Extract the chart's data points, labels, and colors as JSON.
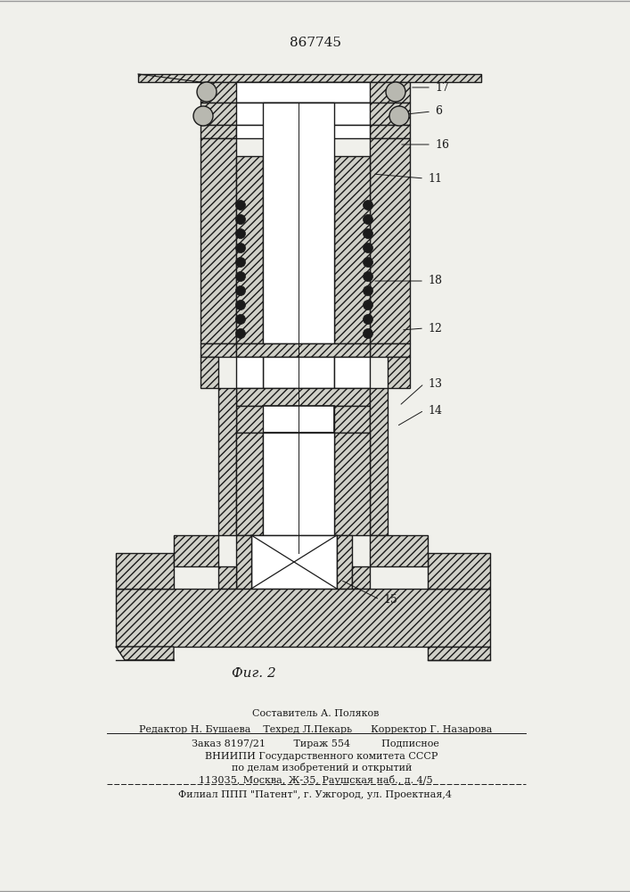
{
  "patent_number": "867745",
  "figure_label": "Фиг. 2",
  "bg_color": "#f0f0eb",
  "line_color": "#1a1a1a",
  "hatch_fc": "#d0d0c8",
  "footer_lines": [
    "Составитель А. Поляков",
    "Редактор Н. Бушаева    Техред Л.Пекарь      Корректор Г. Назарова",
    "Заказ 8197/21         Тираж 554          Подписное",
    "    ВНИИПИ Государственного комитета СССР",
    "    по делам изобретений и открытий",
    "113035, Москва, Ж-35, Раушская наб., д. 4/5",
    "Филиал ППП \"Патент\", г. Ужгород, ул. Проектная,4"
  ]
}
